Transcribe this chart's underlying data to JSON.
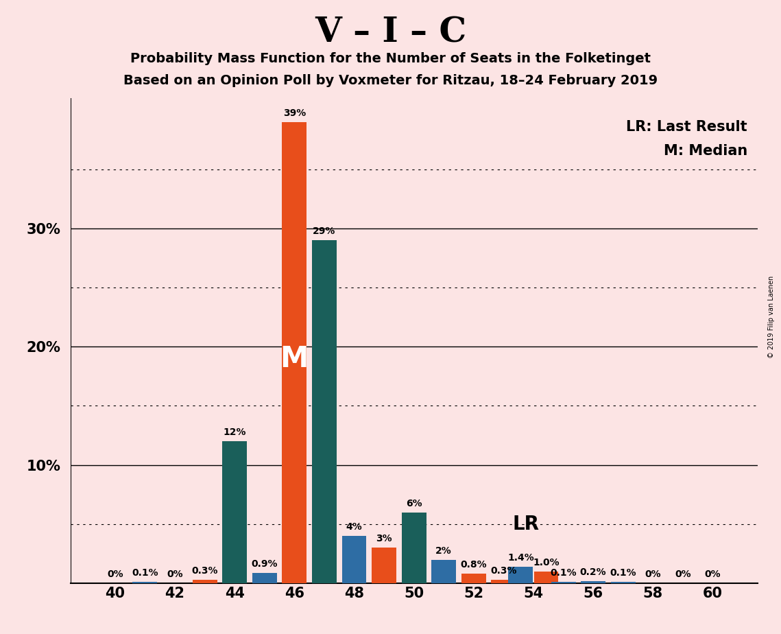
{
  "title_main": "V – I – C",
  "title_line1": "Probability Mass Function for the Number of Seats in the Folketinget",
  "title_line2": "Based on an Opinion Poll by Voxmeter for Ritzau, 18–24 February 2019",
  "background_color": "#fce4e4",
  "copyright_text": "© 2019 Filip van Laenen",
  "legend_lr": "LR: Last Result",
  "legend_m": "M: Median",
  "lr_label": "LR",
  "m_label": "M",
  "color_orange": "#e84e1b",
  "color_teal": "#1a5f5a",
  "color_blue": "#2e6da4",
  "bar_width": 0.85,
  "bars": [
    [
      40,
      "orange",
      0.0
    ],
    [
      41,
      "blue",
      0.1
    ],
    [
      42,
      "orange",
      0.0
    ],
    [
      43,
      "orange",
      0.3
    ],
    [
      44,
      "teal",
      12.0
    ],
    [
      45,
      "blue",
      0.9
    ],
    [
      46,
      "orange",
      39.0
    ],
    [
      47,
      "teal",
      29.0
    ],
    [
      48,
      "blue",
      4.0
    ],
    [
      49,
      "orange",
      3.0
    ],
    [
      50,
      "teal",
      6.0
    ],
    [
      51,
      "blue",
      2.0
    ],
    [
      52,
      "orange",
      0.8
    ],
    [
      53,
      "orange",
      0.3
    ],
    [
      54,
      "blue",
      1.4
    ],
    [
      54,
      "orange",
      1.0
    ],
    [
      55,
      "blue",
      0.1
    ],
    [
      56,
      "blue",
      0.2
    ],
    [
      57,
      "blue",
      0.1
    ],
    [
      58,
      "orange",
      0.0
    ],
    [
      59,
      "orange",
      0.0
    ],
    [
      60,
      "orange",
      0.0
    ]
  ],
  "bar_labels": [
    [
      40,
      "orange",
      0.0,
      "0%"
    ],
    [
      41,
      "blue",
      0.1,
      "0.1%"
    ],
    [
      42,
      "orange",
      0.0,
      "0%"
    ],
    [
      43,
      "orange",
      0.3,
      "0.3%"
    ],
    [
      44,
      "teal",
      12.0,
      "12%"
    ],
    [
      45,
      "blue",
      0.9,
      "0.9%"
    ],
    [
      46,
      "orange",
      39.0,
      "39%"
    ],
    [
      47,
      "teal",
      29.0,
      "29%"
    ],
    [
      48,
      "blue",
      4.0,
      "4%"
    ],
    [
      49,
      "orange",
      3.0,
      "3%"
    ],
    [
      50,
      "teal",
      6.0,
      "6%"
    ],
    [
      51,
      "blue",
      2.0,
      "2%"
    ],
    [
      52,
      "orange",
      0.8,
      "0.8%"
    ],
    [
      53,
      "orange",
      0.3,
      "0.3%"
    ],
    [
      54,
      "blue",
      1.4,
      "1.4%"
    ],
    [
      54,
      "orange",
      1.0,
      "1.0%"
    ],
    [
      55,
      "blue",
      0.1,
      "0.1%"
    ],
    [
      56,
      "blue",
      0.2,
      "0.2%"
    ],
    [
      57,
      "blue",
      0.1,
      "0.1%"
    ],
    [
      58,
      "orange",
      0.0,
      "0%"
    ],
    [
      59,
      "orange",
      0.0,
      "0%"
    ],
    [
      60,
      "orange",
      0.0,
      "0%"
    ]
  ],
  "xlim": [
    38.5,
    61.5
  ],
  "ylim": [
    0,
    41
  ],
  "xticks": [
    40,
    42,
    44,
    46,
    48,
    50,
    52,
    54,
    56,
    58,
    60
  ],
  "ytick_majors": [
    10,
    20,
    30
  ],
  "ytick_dotted": [
    5,
    15,
    25,
    35
  ],
  "m_seat": 46,
  "lr_seat": 53,
  "label_fontsize": 10,
  "axis_label_fontsize": 15,
  "title_main_fontsize": 36,
  "title_sub_fontsize": 14
}
